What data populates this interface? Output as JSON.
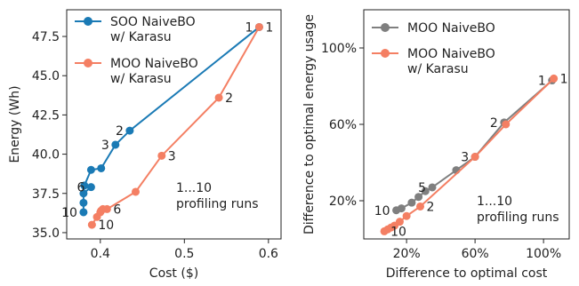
{
  "chart_data": [
    {
      "type": "line",
      "xlabel": "Cost ($)",
      "ylabel": "Energy (Wh)",
      "xlim": [
        0.36,
        0.615
      ],
      "ylim": [
        34.6,
        49.2
      ],
      "x_ticks": [
        0.4,
        0.5,
        0.6
      ],
      "x_tick_labels": [
        "0.4",
        "0.5",
        "0.6"
      ],
      "y_ticks": [
        35.0,
        37.5,
        40.0,
        42.5,
        45.0,
        47.5
      ],
      "y_tick_labels": [
        "35.0",
        "37.5",
        "40.0",
        "42.5",
        "45.0",
        "47.5"
      ],
      "legend_position": "top-left",
      "annotation": [
        "1...10",
        "profiling runs"
      ],
      "series": [
        {
          "name": "SOO NaiveBO\nw/ Karasu",
          "color": "#1a7ab5",
          "points": [
            [
              0.589,
              48.1
            ],
            [
              0.435,
              41.5
            ],
            [
              0.418,
              40.6
            ],
            [
              0.401,
              39.1
            ],
            [
              0.389,
              39.0
            ],
            [
              0.381,
              38.0
            ],
            [
              0.389,
              37.9
            ],
            [
              0.38,
              37.5
            ],
            [
              0.38,
              36.9
            ],
            [
              0.38,
              36.3
            ]
          ],
          "labels": [
            {
              "text": "1",
              "point": 0,
              "side": "right"
            },
            {
              "text": "2",
              "point": 1,
              "side": "left"
            },
            {
              "text": "3",
              "point": 2,
              "side": "left"
            },
            {
              "text": "6",
              "point": 6,
              "side": "left"
            },
            {
              "text": "10",
              "point": 9,
              "side": "left"
            }
          ]
        },
        {
          "name": "MOO NaiveBO\nw/ Karasu",
          "color": "#f47f63",
          "points": [
            [
              0.589,
              48.1
            ],
            [
              0.541,
              43.6
            ],
            [
              0.473,
              39.9
            ],
            [
              0.442,
              37.6
            ],
            [
              0.408,
              36.5
            ],
            [
              0.403,
              36.5
            ],
            [
              0.401,
              36.4
            ],
            [
              0.4,
              36.3
            ],
            [
              0.396,
              36.0
            ],
            [
              0.39,
              35.5
            ]
          ],
          "labels": [
            {
              "text": "1",
              "point": 0,
              "side": "left"
            },
            {
              "text": "2",
              "point": 1,
              "side": "right"
            },
            {
              "text": "3",
              "point": 2,
              "side": "right"
            },
            {
              "text": "6",
              "point": 4,
              "side": "right"
            },
            {
              "text": "10",
              "point": 9,
              "side": "right"
            }
          ]
        }
      ]
    },
    {
      "type": "line",
      "xlabel": "Difference to optimal cost",
      "ylabel": "Difference to optimal energy usage",
      "xlim": [
        -0.05,
        1.15
      ],
      "ylim": [
        0.0,
        1.2
      ],
      "x_ticks": [
        0.2,
        0.6,
        1.0
      ],
      "x_tick_labels": [
        "20%",
        "60%",
        "100%"
      ],
      "y_ticks": [
        0.2,
        0.6,
        1.0
      ],
      "y_tick_labels": [
        "20%",
        "60%",
        "100%"
      ],
      "legend_position": "top-left",
      "annotation": [
        "1...10",
        "profiling runs"
      ],
      "series": [
        {
          "name": "MOO NaiveBO",
          "color": "#7f7f7f",
          "points": [
            [
              1.05,
              0.83
            ],
            [
              0.77,
              0.61
            ],
            [
              0.6,
              0.43
            ],
            [
              0.49,
              0.36
            ],
            [
              0.35,
              0.27
            ],
            [
              0.31,
              0.25
            ],
            [
              0.27,
              0.22
            ],
            [
              0.23,
              0.19
            ],
            [
              0.17,
              0.16
            ],
            [
              0.14,
              0.15
            ]
          ],
          "labels": [
            {
              "text": "1",
              "point": 0,
              "side": "left"
            },
            {
              "text": "2",
              "point": 1,
              "side": "left"
            },
            {
              "text": "3",
              "point": 2,
              "side": "left"
            },
            {
              "text": "5",
              "point": 4,
              "side": "left"
            },
            {
              "text": "10",
              "point": 9,
              "side": "left"
            }
          ]
        },
        {
          "name": "MOO NaiveBO\nw/ Karasu",
          "color": "#f47f63",
          "points": [
            [
              1.06,
              0.84
            ],
            [
              0.78,
              0.6
            ],
            [
              0.6,
              0.43
            ],
            [
              0.28,
              0.17
            ],
            [
              0.2,
              0.12
            ],
            [
              0.16,
              0.09
            ],
            [
              0.13,
              0.07
            ],
            [
              0.11,
              0.06
            ],
            [
              0.09,
              0.05
            ],
            [
              0.07,
              0.04
            ]
          ],
          "labels": [
            {
              "text": "1",
              "point": 0,
              "side": "right"
            },
            {
              "text": "2",
              "point": 3,
              "side": "right"
            },
            {
              "text": "10",
              "point": 9,
              "side": "right"
            }
          ]
        }
      ]
    }
  ]
}
